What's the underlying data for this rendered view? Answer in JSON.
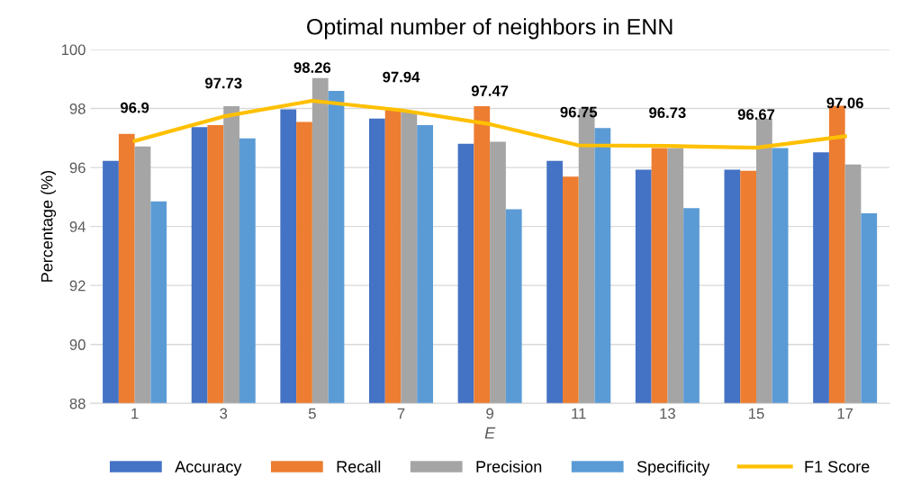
{
  "chart_data": {
    "type": "bar",
    "title": "Optimal number of neighbors in ENN",
    "xlabel": "E",
    "ylabel": "Percentage (%)",
    "categories": [
      "1",
      "3",
      "5",
      "7",
      "9",
      "11",
      "13",
      "15",
      "17"
    ],
    "series": [
      {
        "name": "Accuracy",
        "color": "#4472c4",
        "values": [
          96.22,
          97.37,
          97.97,
          97.66,
          96.8,
          96.22,
          95.93,
          95.93,
          96.51
        ]
      },
      {
        "name": "Recall",
        "color": "#ed7d31",
        "values": [
          97.14,
          97.44,
          97.54,
          97.98,
          98.08,
          95.69,
          96.66,
          95.89,
          98.09
        ]
      },
      {
        "name": "Precision",
        "color": "#a5a5a5",
        "values": [
          96.71,
          98.08,
          99.03,
          97.88,
          96.87,
          98.0,
          96.66,
          97.66,
          96.1
        ]
      },
      {
        "name": "Specificity",
        "color": "#5b9bd5",
        "values": [
          94.85,
          96.99,
          98.6,
          97.44,
          94.58,
          97.34,
          94.62,
          96.66,
          94.45
        ]
      },
      {
        "name": "F1 Score",
        "type": "line",
        "color": "#ffc000",
        "values": [
          96.9,
          97.73,
          98.26,
          97.94,
          97.47,
          96.75,
          96.73,
          96.67,
          97.06
        ],
        "value_labels": [
          "96.9",
          "97.73",
          "98.26",
          "97.94",
          "97.47",
          "96.75",
          "96.73",
          "96.67",
          "97.06"
        ]
      }
    ],
    "ylim": [
      88,
      100
    ],
    "yticks": [
      88,
      90,
      92,
      94,
      96,
      98,
      100
    ],
    "grid": "y",
    "legend": "bottom"
  }
}
